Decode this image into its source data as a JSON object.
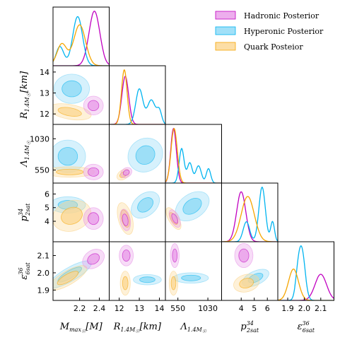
{
  "chart_data": {
    "type": "corner",
    "series": [
      {
        "name": "Hadronic Posterior",
        "color": "#c000c0",
        "fill": "#e89ae8"
      },
      {
        "name": "Hyperonic Posterior",
        "color": "#00b4f0",
        "fill": "#8ad8f6"
      },
      {
        "name": "Quark Posteior",
        "color": "#f5a500",
        "fill": "#fbd690"
      }
    ],
    "parameters": [
      {
        "label": "M_max[M_☉]",
        "ticks": [
          "2.2",
          "2.4"
        ],
        "tick_values": [
          2.2,
          2.4
        ],
        "range": [
          1.93,
          2.5
        ]
      },
      {
        "label": "R_1.4M☉[km]",
        "ticks": [
          "12",
          "13",
          "14"
        ],
        "tick_values": [
          12,
          13,
          14
        ],
        "range": [
          11.5,
          14.3
        ]
      },
      {
        "label": "Λ_1.4M☉",
        "ticks": [
          "550",
          "1030"
        ],
        "tick_values": [
          550,
          1030
        ],
        "range": [
          350,
          1250
        ]
      },
      {
        "label": "p_2sat^34",
        "ticks": [
          "4",
          "5",
          "6"
        ],
        "tick_values": [
          4,
          5,
          6
        ],
        "range": [
          2.5,
          6.8
        ]
      },
      {
        "label": "ε_6sat^36",
        "ticks": [
          "1.9",
          "2.0",
          "2.1"
        ],
        "tick_values": [
          1.9,
          2.0,
          2.1
        ],
        "range": [
          1.84,
          2.18
        ]
      }
    ],
    "axis_labels": {
      "bottom": [
        {
          "main": "M",
          "sub": "max",
          "tail": "[M",
          "sun": "☉",
          "end": "]"
        },
        {
          "main": "R",
          "sub": "1.4M",
          "sun": "☉",
          "tail": "[km]"
        },
        {
          "main": "Λ",
          "sub": "1.4M",
          "sun": "☉",
          "tail": ""
        },
        {
          "main": "p",
          "sup": "34",
          "sub": "2sat",
          "tail": ""
        },
        {
          "main": "ε",
          "sup": "36",
          "sub": "6sat",
          "tail": ""
        }
      ],
      "left": [
        {
          "main": "R",
          "sub": "1.4M",
          "sun": "☉",
          "tail": "[km]"
        },
        {
          "main": "Λ",
          "sub": "1.4M",
          "sun": "☉",
          "tail": ""
        },
        {
          "main": "p",
          "sup": "34",
          "sub": "2sat",
          "tail": ""
        },
        {
          "main": "ε",
          "sup": "36",
          "sub": "6sat",
          "tail": ""
        }
      ]
    },
    "marginals": [
      {
        "param": 0,
        "peaks": [
          {
            "series": 0,
            "modes": [
              {
                "mu": 2.35,
                "sigma": 0.055,
                "w": 1
              }
            ]
          },
          {
            "series": 1,
            "modes": [
              {
                "mu": 2.0,
                "sigma": 0.04,
                "w": 0.35
              },
              {
                "mu": 2.18,
                "sigma": 0.05,
                "w": 0.9
              }
            ]
          },
          {
            "series": 2,
            "modes": [
              {
                "mu": 2.02,
                "sigma": 0.05,
                "w": 0.4
              },
              {
                "mu": 2.2,
                "sigma": 0.06,
                "w": 0.75
              }
            ]
          }
        ]
      },
      {
        "param": 1,
        "peaks": [
          {
            "series": 0,
            "modes": [
              {
                "mu": 12.3,
                "sigma": 0.17,
                "w": 0.75
              }
            ]
          },
          {
            "series": 1,
            "modes": [
              {
                "mu": 13.0,
                "sigma": 0.18,
                "w": 0.55
              },
              {
                "mu": 13.6,
                "sigma": 0.2,
                "w": 0.38
              },
              {
                "mu": 14.0,
                "sigma": 0.12,
                "w": 0.2
              }
            ]
          },
          {
            "series": 2,
            "modes": [
              {
                "mu": 12.25,
                "sigma": 0.14,
                "w": 0.85
              }
            ]
          }
        ]
      },
      {
        "param": 2,
        "peaks": [
          {
            "series": 0,
            "modes": [
              {
                "mu": 480,
                "sigma": 45,
                "w": 0.95
              }
            ]
          },
          {
            "series": 1,
            "modes": [
              {
                "mu": 610,
                "sigma": 40,
                "w": 0.6
              },
              {
                "mu": 740,
                "sigma": 40,
                "w": 0.35
              },
              {
                "mu": 880,
                "sigma": 45,
                "w": 0.3
              },
              {
                "mu": 1040,
                "sigma": 35,
                "w": 0.25
              }
            ]
          },
          {
            "series": 2,
            "modes": [
              {
                "mu": 490,
                "sigma": 50,
                "w": 0.95
              }
            ]
          }
        ]
      },
      {
        "param": 3,
        "peaks": [
          {
            "series": 0,
            "modes": [
              {
                "mu": 4.0,
                "sigma": 0.35,
                "w": 0.75
              }
            ]
          },
          {
            "series": 1,
            "modes": [
              {
                "mu": 4.4,
                "sigma": 0.25,
                "w": 0.3
              },
              {
                "mu": 5.6,
                "sigma": 0.25,
                "w": 0.82
              },
              {
                "mu": 6.4,
                "sigma": 0.15,
                "w": 0.3
              }
            ]
          },
          {
            "series": 2,
            "modes": [
              {
                "mu": 4.5,
                "sigma": 0.5,
                "w": 0.68
              }
            ]
          }
        ]
      },
      {
        "param": 4,
        "peaks": [
          {
            "series": 0,
            "modes": [
              {
                "mu": 2.1,
                "sigma": 0.035,
                "w": 0.5
              }
            ]
          },
          {
            "series": 1,
            "modes": [
              {
                "mu": 1.985,
                "sigma": 0.02,
                "w": 0.95
              },
              {
                "mu": 1.96,
                "sigma": 0.015,
                "w": 0.3
              }
            ]
          },
          {
            "series": 2,
            "modes": [
              {
                "mu": 1.935,
                "sigma": 0.03,
                "w": 0.6
              }
            ]
          }
        ]
      }
    ],
    "joint": [
      {
        "x": 0,
        "y": 1,
        "blobs": [
          {
            "series": 1,
            "cx": 2.12,
            "cy": 13.2,
            "rx": 0.18,
            "ry": 0.7,
            "rot": 0
          },
          {
            "series": 2,
            "cx": 2.1,
            "cy": 12.1,
            "rx": 0.22,
            "ry": 0.35,
            "rot": -10
          },
          {
            "series": 0,
            "cx": 2.34,
            "cy": 12.4,
            "rx": 0.1,
            "ry": 0.45,
            "rot": 0
          }
        ]
      },
      {
        "x": 0,
        "y": 2,
        "blobs": [
          {
            "series": 1,
            "cx": 2.08,
            "cy": 760,
            "rx": 0.18,
            "ry": 250,
            "rot": 0
          },
          {
            "series": 2,
            "cx": 2.1,
            "cy": 520,
            "rx": 0.25,
            "ry": 80,
            "rot": 0
          },
          {
            "series": 0,
            "cx": 2.34,
            "cy": 520,
            "rx": 0.1,
            "ry": 120,
            "rot": 0
          }
        ]
      },
      {
        "x": 0,
        "y": 3,
        "blobs": [
          {
            "series": 1,
            "cx": 2.08,
            "cy": 5.2,
            "rx": 0.18,
            "ry": 0.6,
            "rot": 0
          },
          {
            "series": 2,
            "cx": 2.12,
            "cy": 4.4,
            "rx": 0.2,
            "ry": 1.1,
            "rot": 20
          },
          {
            "series": 0,
            "cx": 2.34,
            "cy": 4.2,
            "rx": 0.1,
            "ry": 0.8,
            "rot": 0
          }
        ]
      },
      {
        "x": 0,
        "y": 4,
        "blobs": [
          {
            "series": 1,
            "cx": 2.1,
            "cy": 1.99,
            "rx": 0.25,
            "ry": 0.04,
            "rot": 30
          },
          {
            "series": 2,
            "cx": 2.08,
            "cy": 1.97,
            "rx": 0.22,
            "ry": 0.04,
            "rot": 30
          },
          {
            "series": 0,
            "cx": 2.34,
            "cy": 2.08,
            "rx": 0.12,
            "ry": 0.05,
            "rot": 35
          }
        ]
      },
      {
        "x": 1,
        "y": 2,
        "blobs": [
          {
            "series": 1,
            "cx": 13.3,
            "cy": 780,
            "rx": 0.9,
            "ry": 250,
            "rot": 40
          },
          {
            "series": 2,
            "cx": 12.2,
            "cy": 480,
            "rx": 0.35,
            "ry": 70,
            "rot": 35
          },
          {
            "series": 0,
            "cx": 12.35,
            "cy": 510,
            "rx": 0.3,
            "ry": 70,
            "rot": 35
          }
        ]
      },
      {
        "x": 1,
        "y": 3,
        "blobs": [
          {
            "series": 1,
            "cx": 13.3,
            "cy": 5.2,
            "rx": 0.8,
            "ry": 0.8,
            "rot": 40
          },
          {
            "series": 2,
            "cx": 12.3,
            "cy": 4.2,
            "rx": 0.35,
            "ry": 1.2,
            "rot": 15
          },
          {
            "series": 0,
            "cx": 12.3,
            "cy": 4.1,
            "rx": 0.25,
            "ry": 0.8,
            "rot": 10
          }
        ]
      },
      {
        "x": 1,
        "y": 4,
        "blobs": [
          {
            "series": 1,
            "cx": 13.4,
            "cy": 1.96,
            "rx": 0.7,
            "ry": 0.03,
            "rot": 0
          },
          {
            "series": 2,
            "cx": 12.3,
            "cy": 1.94,
            "rx": 0.25,
            "ry": 0.07,
            "rot": 0
          },
          {
            "series": 0,
            "cx": 12.35,
            "cy": 2.1,
            "rx": 0.35,
            "ry": 0.06,
            "rot": 0
          }
        ]
      },
      {
        "x": 2,
        "y": 3,
        "blobs": [
          {
            "series": 1,
            "cx": 780,
            "cy": 5.1,
            "rx": 300,
            "ry": 0.9,
            "rot": 35
          },
          {
            "series": 2,
            "cx": 480,
            "cy": 4.2,
            "rx": 80,
            "ry": 0.9,
            "rot": 30
          },
          {
            "series": 0,
            "cx": 500,
            "cy": 4.2,
            "rx": 70,
            "ry": 0.7,
            "rot": 25
          }
        ]
      },
      {
        "x": 2,
        "y": 4,
        "blobs": [
          {
            "series": 1,
            "cx": 760,
            "cy": 1.97,
            "rx": 280,
            "ry": 0.03,
            "rot": 0
          },
          {
            "series": 2,
            "cx": 480,
            "cy": 1.94,
            "rx": 70,
            "ry": 0.07,
            "rot": 0
          },
          {
            "series": 0,
            "cx": 500,
            "cy": 2.1,
            "rx": 70,
            "ry": 0.07,
            "rot": 0
          }
        ]
      },
      {
        "x": 3,
        "y": 4,
        "blobs": [
          {
            "series": 1,
            "cx": 5.1,
            "cy": 1.97,
            "rx": 1.1,
            "ry": 0.04,
            "rot": 25
          },
          {
            "series": 2,
            "cx": 4.4,
            "cy": 1.94,
            "rx": 1.0,
            "ry": 0.05,
            "rot": 15
          },
          {
            "series": 0,
            "cx": 4.2,
            "cy": 2.1,
            "rx": 0.7,
            "ry": 0.07,
            "rot": 0
          }
        ]
      }
    ],
    "legend_position": "top-right",
    "grid": false
  }
}
